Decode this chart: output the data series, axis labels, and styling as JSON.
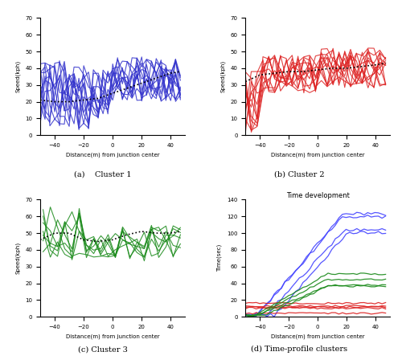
{
  "xlim": [
    -50,
    50
  ],
  "ylim_speed": [
    0,
    70
  ],
  "ylim_time": [
    0,
    140
  ],
  "xticks": [
    -40,
    -20,
    0,
    20,
    40
  ],
  "yticks_speed": [
    0,
    10,
    20,
    30,
    40,
    50,
    60,
    70
  ],
  "yticks_time": [
    0,
    20,
    40,
    60,
    80,
    100,
    120,
    140
  ],
  "xlabel": "Distance(m) from junction center",
  "ylabel_speed": "Speed(kph)",
  "ylabel_time": "Time(sec)",
  "color_c1": "#3333cc",
  "color_c2": "#dd2222",
  "color_c3": "#1a8a1a",
  "color_time_blue": "#4444ff",
  "color_time_red": "#dd2222",
  "color_time_green": "#1a8a1a",
  "title_d": "Time development",
  "label_a": "(a)    Cluster 1",
  "label_b": "(b) Cluster 2",
  "label_c": "(c) Cluster 3",
  "label_d": "(d) Time-profile clusters"
}
